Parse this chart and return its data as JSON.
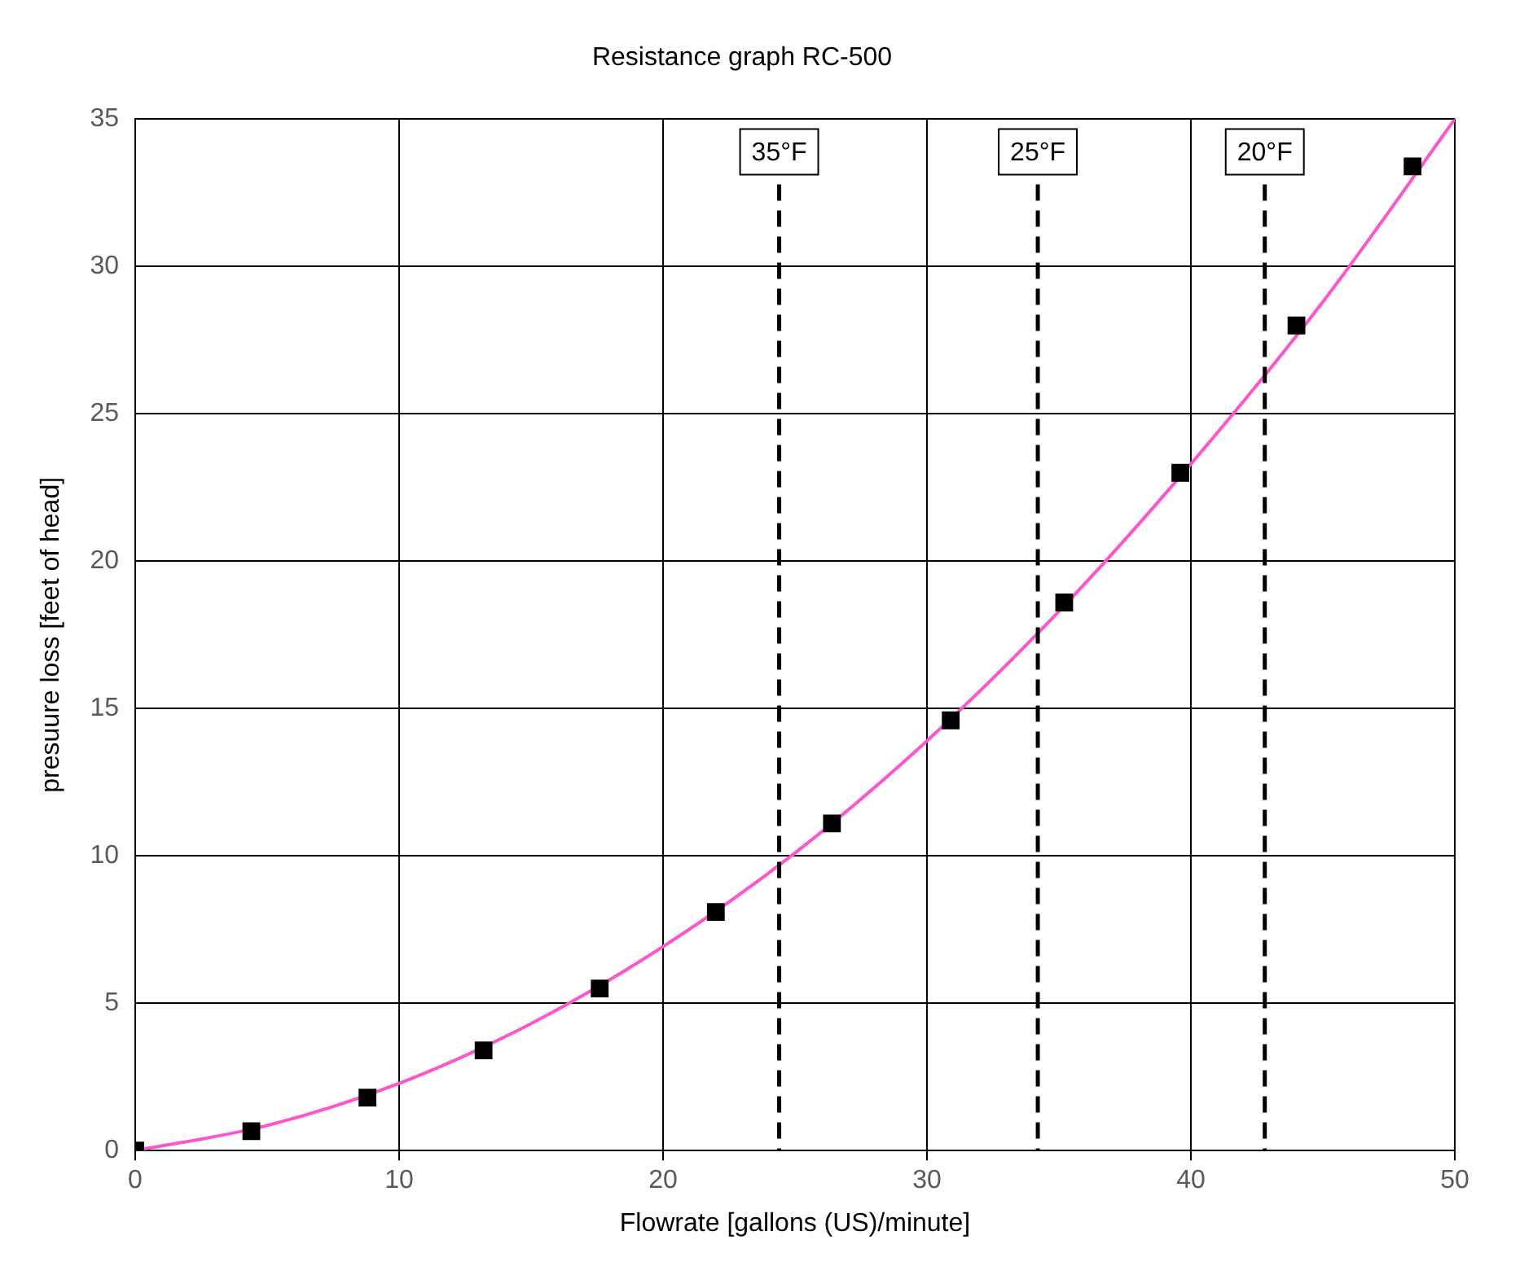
{
  "chart_data": {
    "type": "scatter",
    "title": "Resistance graph RC-500",
    "xlabel": "Flowrate [gallons (US)/minute]",
    "ylabel": "presuure loss [feet of head]",
    "xlim": [
      0,
      50
    ],
    "xticks": [
      0,
      10,
      20,
      30,
      40,
      50
    ],
    "ylim": [
      0,
      35
    ],
    "yticks": [
      0,
      5,
      10,
      15,
      20,
      25,
      30,
      35
    ],
    "grid": true,
    "legend": false,
    "series": [
      {
        "type": "scatter",
        "color": "#000000",
        "marker": "square",
        "x": [
          0,
          4.4,
          8.8,
          13.2,
          17.6,
          22.0,
          26.4,
          30.9,
          35.2,
          39.6,
          44.0,
          48.4
        ],
        "values": [
          0,
          0.66,
          1.8,
          3.4,
          5.5,
          8.1,
          11.1,
          14.6,
          18.6,
          23.0,
          28.0,
          33.4
        ]
      },
      {
        "type": "line",
        "color": "#ff55cc",
        "marker": "none",
        "line_style": "solid",
        "x": [
          0,
          5,
          10,
          15,
          20,
          25,
          30,
          35,
          40,
          45,
          50
        ],
        "values": [
          0,
          0.85,
          2.28,
          4.31,
          6.92,
          10.1,
          13.9,
          18.3,
          23.3,
          28.8,
          35.0
        ]
      }
    ],
    "ref_lines": [
      {
        "axis": "x",
        "value": 24.4,
        "label": "35°F",
        "color": "#000000",
        "line_style": "dashed"
      },
      {
        "axis": "x",
        "value": 34.2,
        "label": "25°F",
        "color": "#000000",
        "line_style": "dashed"
      },
      {
        "axis": "x",
        "value": 42.8,
        "label": "20°F",
        "color": "#000000",
        "line_style": "dashed"
      }
    ]
  }
}
